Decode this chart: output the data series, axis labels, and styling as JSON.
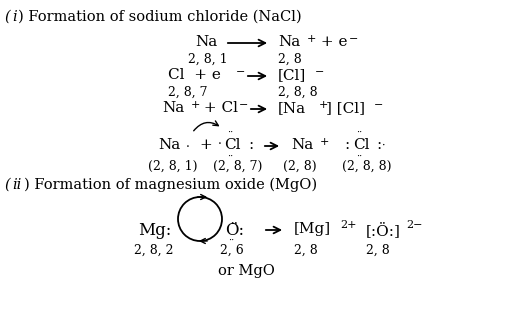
{
  "bg_color": "#ffffff",
  "figsize": [
    5.25,
    3.15
  ],
  "dpi": 100,
  "title_i": "(i) Formation of sodium chloride (NaCl)",
  "title_ii": "(ii) Formation of magnesium oxide (MgO)",
  "or_mgo": "or MgO"
}
